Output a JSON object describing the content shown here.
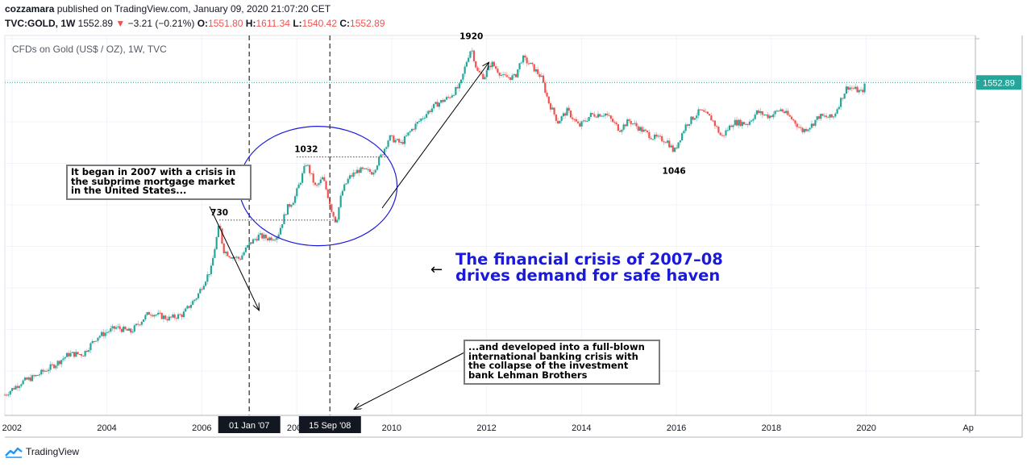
{
  "header": {
    "author": "cozzamara",
    "published": " published on TradingView.com, January 09, 2020 21:07:20 CET",
    "symbol": "TVC:GOLD, 1W",
    "last": "1552.89",
    "change_arrow": "▼",
    "change": "−3.21 (−0.21%)",
    "open_label": "O:",
    "open": "1551.80",
    "high_label": "H:",
    "high": "1611.34",
    "low_label": "L:",
    "low": "1540.42",
    "close_label": "C:",
    "close": "1552.89"
  },
  "legend_title": "CFDs on Gold (US$ / OZ), 1W, TVC",
  "annotations": {
    "box1": "It began in 2007 with a crisis in\nthe subprime mortgage market\nin the United States...",
    "box2": "...and developed into a full-blown\ninternational banking crisis with\nthe collapse of the investment\nbank Lehman Brothers",
    "headline_line1": "The financial crisis of 2007–08",
    "headline_line2": "drives demand for safe haven",
    "arrow_left": "←"
  },
  "date_markers": [
    "01 Jan '07",
    "15 Sep '08"
  ],
  "footer": {
    "brand": "TradingView"
  },
  "colors": {
    "up": "#26a69a",
    "down": "#ef5350",
    "price_line": "#26a69a",
    "ellipse": "#1a1adb",
    "grid": "#f0f3fa",
    "headline": "#1a1adb"
  },
  "chart_data": {
    "type": "candlestick",
    "title": "CFDs on Gold (US$ / OZ), 1W, TVC",
    "x_ticks": [
      "2002",
      "2004",
      "2006",
      "2008",
      "2010",
      "2012",
      "2014",
      "2016",
      "2018",
      "2020",
      "Ap"
    ],
    "x_range": [
      2001.85,
      2022.3
    ],
    "y_range": [
      250,
      2010
    ],
    "y_scale": "log",
    "current_price": 1552.89,
    "current_price_label": "1552.89",
    "price_path": [
      [
        2001.85,
        280
      ],
      [
        2002.2,
        300
      ],
      [
        2002.5,
        310
      ],
      [
        2002.9,
        330
      ],
      [
        2003.2,
        350
      ],
      [
        2003.5,
        350
      ],
      [
        2003.8,
        385
      ],
      [
        2004.2,
        405
      ],
      [
        2004.5,
        395
      ],
      [
        2004.9,
        440
      ],
      [
        2005.3,
        425
      ],
      [
        2005.6,
        435
      ],
      [
        2005.9,
        480
      ],
      [
        2006.2,
        560
      ],
      [
        2006.37,
        715
      ],
      [
        2006.45,
        620
      ],
      [
        2006.6,
        600
      ],
      [
        2006.8,
        590
      ],
      [
        2007.0,
        640
      ],
      [
        2007.2,
        670
      ],
      [
        2007.4,
        660
      ],
      [
        2007.6,
        670
      ],
      [
        2007.8,
        780
      ],
      [
        2007.95,
        820
      ],
      [
        2008.1,
        920
      ],
      [
        2008.2,
        1000
      ],
      [
        2008.4,
        870
      ],
      [
        2008.55,
        920
      ],
      [
        2008.75,
        760
      ],
      [
        2008.83,
        720
      ],
      [
        2008.95,
        850
      ],
      [
        2009.1,
        920
      ],
      [
        2009.3,
        960
      ],
      [
        2009.6,
        950
      ],
      [
        2009.8,
        1050
      ],
      [
        2009.95,
        1150
      ],
      [
        2010.2,
        1110
      ],
      [
        2010.45,
        1210
      ],
      [
        2010.7,
        1300
      ],
      [
        2010.95,
        1380
      ],
      [
        2011.2,
        1430
      ],
      [
        2011.45,
        1530
      ],
      [
        2011.6,
        1780
      ],
      [
        2011.68,
        1880
      ],
      [
        2011.8,
        1650
      ],
      [
        2011.95,
        1600
      ],
      [
        2012.1,
        1730
      ],
      [
        2012.35,
        1600
      ],
      [
        2012.6,
        1600
      ],
      [
        2012.75,
        1780
      ],
      [
        2012.95,
        1700
      ],
      [
        2013.15,
        1600
      ],
      [
        2013.3,
        1400
      ],
      [
        2013.5,
        1250
      ],
      [
        2013.7,
        1330
      ],
      [
        2013.95,
        1220
      ],
      [
        2014.2,
        1300
      ],
      [
        2014.5,
        1310
      ],
      [
        2014.8,
        1200
      ],
      [
        2015.0,
        1260
      ],
      [
        2015.25,
        1200
      ],
      [
        2015.5,
        1150
      ],
      [
        2015.8,
        1130
      ],
      [
        2015.95,
        1060
      ],
      [
        2016.2,
        1230
      ],
      [
        2016.5,
        1330
      ],
      [
        2016.75,
        1270
      ],
      [
        2016.95,
        1150
      ],
      [
        2017.2,
        1250
      ],
      [
        2017.5,
        1240
      ],
      [
        2017.7,
        1320
      ],
      [
        2017.95,
        1290
      ],
      [
        2018.2,
        1340
      ],
      [
        2018.5,
        1250
      ],
      [
        2018.65,
        1190
      ],
      [
        2018.85,
        1230
      ],
      [
        2019.0,
        1290
      ],
      [
        2019.3,
        1280
      ],
      [
        2019.45,
        1400
      ],
      [
        2019.6,
        1520
      ],
      [
        2019.8,
        1490
      ],
      [
        2019.9,
        1470
      ],
      [
        2020.0,
        1552
      ]
    ],
    "annotations": [
      {
        "label": "730",
        "x": 2006.37,
        "y": 730
      },
      {
        "label": "1032",
        "x": 2008.2,
        "y": 1032
      },
      {
        "label": "1920",
        "x": 2011.68,
        "y": 1920
      },
      {
        "label": "1046",
        "x": 2015.95,
        "y": 1046
      }
    ],
    "vertical_markers": [
      {
        "label": "01 Jan '07",
        "x": 2007.0
      },
      {
        "label": "15 Sep '08",
        "x": 2008.7
      }
    ]
  }
}
